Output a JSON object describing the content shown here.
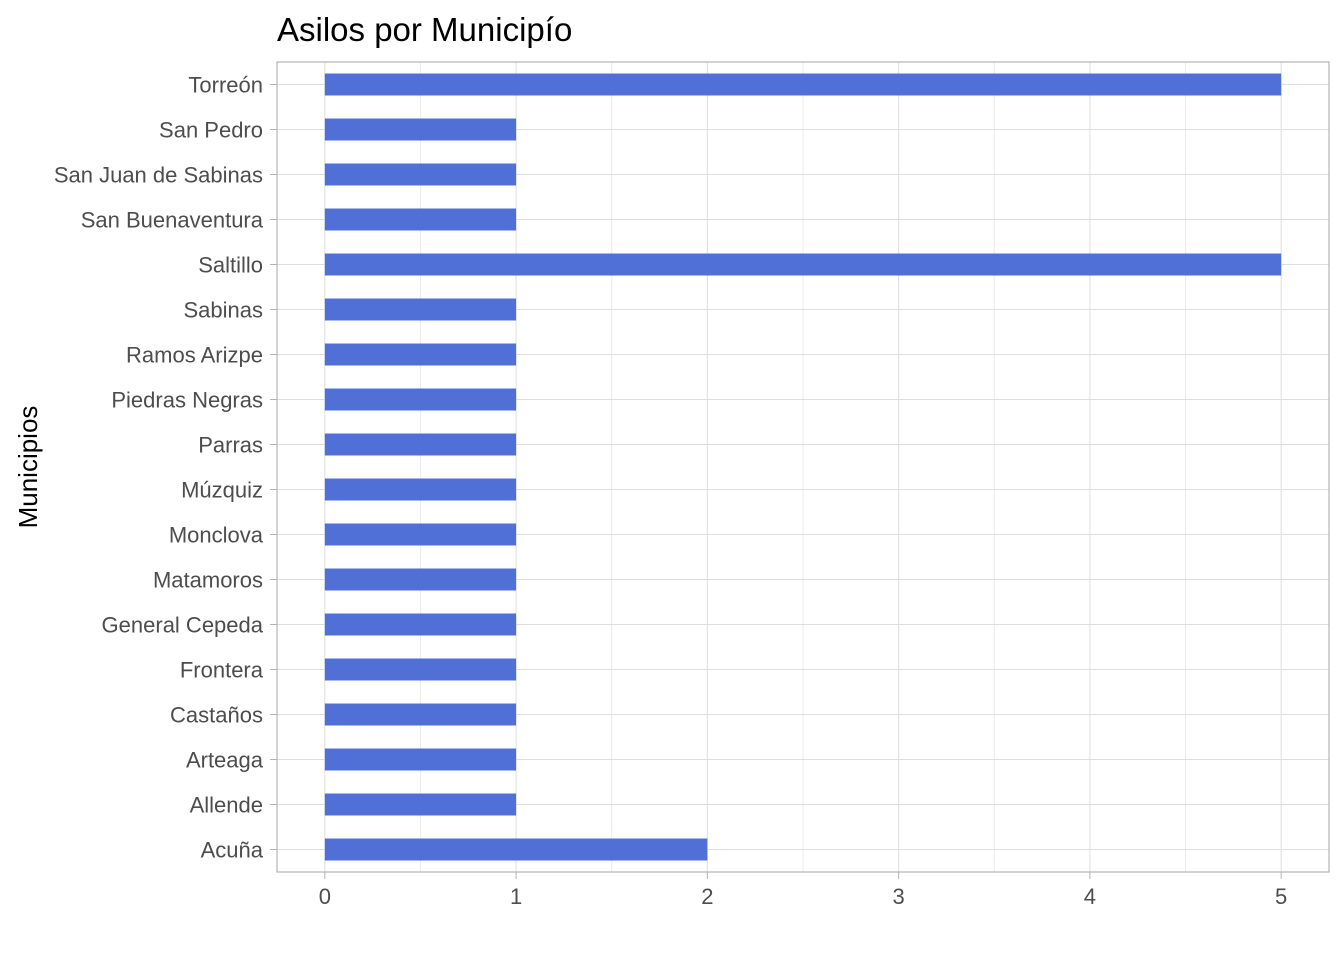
{
  "chart_data": {
    "type": "bar",
    "orientation": "horizontal",
    "title": "Asilos por Municipío",
    "xlabel": "",
    "ylabel": "Municipios",
    "categories": [
      "Acuña",
      "Allende",
      "Arteaga",
      "Castaños",
      "Frontera",
      "General Cepeda",
      "Matamoros",
      "Monclova",
      "Múzquiz",
      "Parras",
      "Piedras Negras",
      "Ramos Arizpe",
      "Sabinas",
      "Saltillo",
      "San Buenaventura",
      "San Juan de Sabinas",
      "San Pedro",
      "Torreón"
    ],
    "values": [
      2,
      1,
      1,
      1,
      1,
      1,
      1,
      1,
      1,
      1,
      1,
      1,
      1,
      5,
      1,
      1,
      1,
      5
    ],
    "xticks": [
      0,
      1,
      2,
      3,
      4,
      5
    ],
    "xlim": [
      -0.25,
      5.25
    ],
    "grid": true,
    "bar_color": "#5170d7",
    "panel_border_color": "#b3b3b3"
  }
}
